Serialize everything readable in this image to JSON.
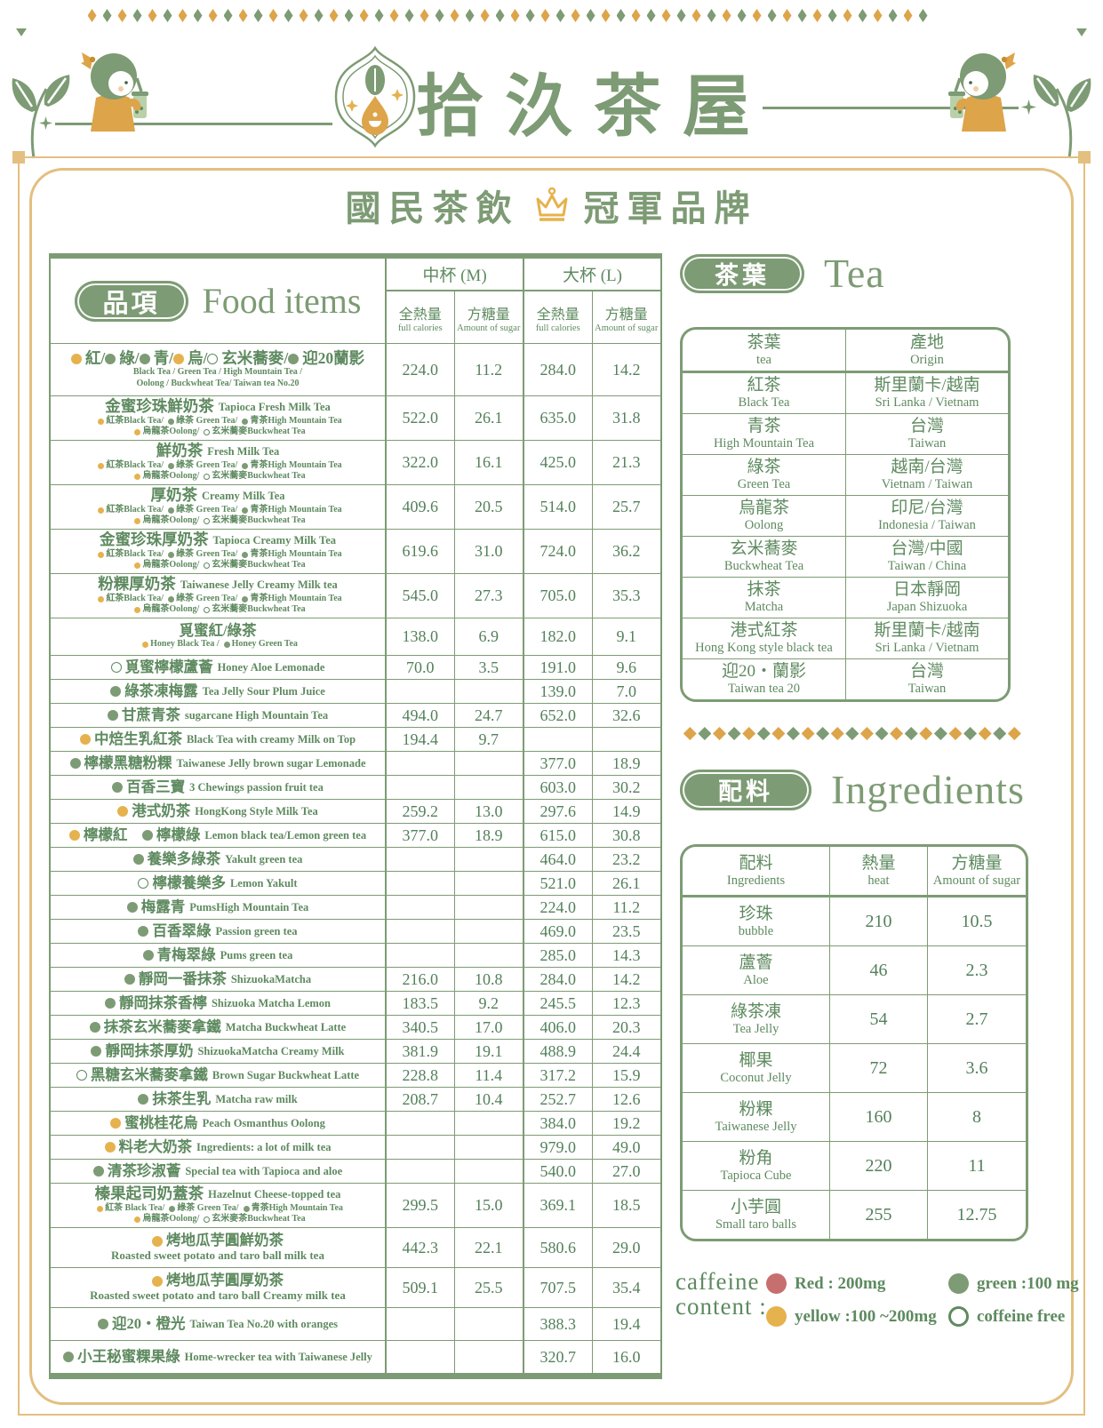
{
  "colors": {
    "green": "#7d9b74",
    "green_text": "#5e8a5f",
    "gold_frame": "#e3bf80",
    "orange": "#dda449",
    "dot_yellow": "#e5b24e",
    "dot_red": "#c76f6f"
  },
  "header": {
    "brand": "拾汣茶屋",
    "subtitle_left": "國民茶飲",
    "subtitle_right": "冠軍品牌"
  },
  "food_table": {
    "badge": "品項",
    "title_en": "Food items",
    "groups": [
      "中杯 (M)",
      "大杯 (L)"
    ],
    "subcols": {
      "cal_zh": "全熱量",
      "cal_en": "full calories",
      "sug_zh": "方糖量",
      "sug_en": "Amount of sugar"
    },
    "rows": [
      {
        "zh": [
          {
            "d": "y",
            "t": "紅"
          },
          {
            "t": "/"
          },
          {
            "d": "g",
            "t": "綠"
          },
          {
            "t": "/"
          },
          {
            "d": "g",
            "t": "青"
          },
          {
            "t": "/"
          },
          {
            "d": "y",
            "t": "烏"
          },
          {
            "t": "/"
          },
          {
            "d": "o",
            "t": "玄米蕎麥"
          },
          {
            "t": "/"
          },
          {
            "d": "g",
            "t": "迎20蘭影"
          }
        ],
        "sub": [
          [
            {
              "t": "Black Tea / Green Tea / High Mountain Tea /"
            }
          ],
          [
            {
              "t": "Oolong / Buckwheat Tea/ Taiwan tea No.20"
            }
          ]
        ],
        "m_cal": "224.0",
        "m_sug": "11.2",
        "l_cal": "284.0",
        "l_sug": "14.2"
      },
      {
        "zh": [
          {
            "t": "金蜜珍珠鮮奶茶"
          }
        ],
        "en": "Tapioca Fresh Milk Tea",
        "sub": [
          [
            {
              "d": "y",
              "t": "紅茶Black Tea/"
            },
            {
              "d": "g",
              "t": "綠茶 Green Tea/"
            },
            {
              "d": "g",
              "t": "青茶High Mountain Tea"
            }
          ],
          [
            {
              "d": "y",
              "t": "烏龍茶Oolong/"
            },
            {
              "d": "o",
              "t": "玄米蕎麥Buckwheat Tea"
            }
          ]
        ],
        "m_cal": "522.0",
        "m_sug": "26.1",
        "l_cal": "635.0",
        "l_sug": "31.8"
      },
      {
        "zh": [
          {
            "t": "鮮奶茶"
          }
        ],
        "en": "Fresh Milk Tea",
        "sub": [
          [
            {
              "d": "y",
              "t": "紅茶Black Tea/"
            },
            {
              "d": "g",
              "t": "綠茶 Green Tea/"
            },
            {
              "d": "g",
              "t": "青茶High Mountain Tea"
            }
          ],
          [
            {
              "d": "y",
              "t": "烏龍茶Oolong/"
            },
            {
              "d": "o",
              "t": "玄米蕎麥Buckwheat Tea"
            }
          ]
        ],
        "m_cal": "322.0",
        "m_sug": "16.1",
        "l_cal": "425.0",
        "l_sug": "21.3"
      },
      {
        "zh": [
          {
            "t": "厚奶茶"
          }
        ],
        "en": "Creamy Milk Tea",
        "sub": [
          [
            {
              "d": "y",
              "t": "紅茶Black Tea/"
            },
            {
              "d": "g",
              "t": "綠茶 Green Tea/"
            },
            {
              "d": "g",
              "t": "青茶High Mountain Tea"
            }
          ],
          [
            {
              "d": "y",
              "t": "烏龍茶Oolong/"
            },
            {
              "d": "o",
              "t": "玄米蕎麥Buckwheat Tea"
            }
          ]
        ],
        "m_cal": "409.6",
        "m_sug": "20.5",
        "l_cal": "514.0",
        "l_sug": "25.7"
      },
      {
        "zh": [
          {
            "t": "金蜜珍珠厚奶茶"
          }
        ],
        "en": "Tapioca Creamy Milk Tea",
        "sub": [
          [
            {
              "d": "y",
              "t": "紅茶Black Tea/"
            },
            {
              "d": "g",
              "t": "綠茶 Green Tea/"
            },
            {
              "d": "g",
              "t": "青茶High Mountain Tea"
            }
          ],
          [
            {
              "d": "y",
              "t": "烏龍茶Oolong/"
            },
            {
              "d": "o",
              "t": "玄米蕎麥Buckwheat Tea"
            }
          ]
        ],
        "m_cal": "619.6",
        "m_sug": "31.0",
        "l_cal": "724.0",
        "l_sug": "36.2"
      },
      {
        "zh": [
          {
            "t": "粉粿厚奶茶"
          }
        ],
        "en": "Taiwanese Jelly Creamy Milk tea",
        "sub": [
          [
            {
              "d": "y",
              "t": "紅茶Black Tea/"
            },
            {
              "d": "g",
              "t": "綠茶 Green Tea/"
            },
            {
              "d": "g",
              "t": "青茶High Mountain Tea"
            }
          ],
          [
            {
              "d": "y",
              "t": "烏龍茶Oolong/"
            },
            {
              "d": "o",
              "t": "玄米蕎麥Buckwheat Tea"
            }
          ]
        ],
        "m_cal": "545.0",
        "m_sug": "27.3",
        "l_cal": "705.0",
        "l_sug": "35.3"
      },
      {
        "zh": [
          {
            "t": "覓蜜紅/綠茶"
          }
        ],
        "sub": [
          [
            {
              "d": "y",
              "t": "Honey Black Tea  / "
            },
            {
              "d": "g",
              "t": "Honey Green Tea"
            }
          ]
        ],
        "m_cal": "138.0",
        "m_sug": "6.9",
        "l_cal": "182.0",
        "l_sug": "9.1"
      },
      {
        "zh": [
          {
            "d": "o",
            "t": "覓蜜檸檬蘆薈"
          }
        ],
        "en": "Honey Aloe Lemonade",
        "m_cal": "70.0",
        "m_sug": "3.5",
        "l_cal": "191.0",
        "l_sug": "9.6"
      },
      {
        "zh": [
          {
            "d": "g",
            "t": "綠茶凍梅露"
          }
        ],
        "en": "Tea Jelly Sour Plum Juice",
        "m_cal": "",
        "m_sug": "",
        "l_cal": "139.0",
        "l_sug": "7.0"
      },
      {
        "zh": [
          {
            "d": "g",
            "t": "甘蔗青茶"
          }
        ],
        "en": "sugarcane High Mountain Tea",
        "m_cal": "494.0",
        "m_sug": "24.7",
        "l_cal": "652.0",
        "l_sug": "32.6"
      },
      {
        "zh": [
          {
            "d": "y",
            "t": "中焙生乳紅茶"
          }
        ],
        "en": "Black Tea with creamy Milk on Top",
        "m_cal": "194.4",
        "m_sug": "9.7",
        "l_cal": "",
        "l_sug": ""
      },
      {
        "zh": [
          {
            "d": "g",
            "t": "檸檬黑糖粉粿"
          }
        ],
        "en": "Taiwanese Jelly brown sugar Lemonade",
        "m_cal": "",
        "m_sug": "",
        "l_cal": "377.0",
        "l_sug": "18.9"
      },
      {
        "zh": [
          {
            "d": "g",
            "t": "百香三寶"
          }
        ],
        "en": "3 Chewings passion fruit tea",
        "m_cal": "",
        "m_sug": "",
        "l_cal": "603.0",
        "l_sug": "30.2"
      },
      {
        "zh": [
          {
            "d": "y",
            "t": "港式奶茶"
          }
        ],
        "en": "HongKong Style Milk Tea",
        "m_cal": "259.2",
        "m_sug": "13.0",
        "l_cal": "297.6",
        "l_sug": "14.9"
      },
      {
        "zh": [
          {
            "d": "y",
            "t": "檸檬紅"
          },
          {
            "t": " "
          },
          {
            "d": "g",
            "t": "檸檬綠"
          }
        ],
        "en": "Lemon black tea/Lemon green tea",
        "m_cal": "377.0",
        "m_sug": "18.9",
        "l_cal": "615.0",
        "l_sug": "30.8"
      },
      {
        "zh": [
          {
            "d": "g",
            "t": "養樂多綠茶"
          }
        ],
        "en": "Yakult green tea",
        "m_cal": "",
        "m_sug": "",
        "l_cal": "464.0",
        "l_sug": "23.2"
      },
      {
        "zh": [
          {
            "d": "o",
            "t": "檸檬養樂多"
          }
        ],
        "en": "Lemon Yakult",
        "m_cal": "",
        "m_sug": "",
        "l_cal": "521.0",
        "l_sug": "26.1"
      },
      {
        "zh": [
          {
            "d": "g",
            "t": "梅露青"
          }
        ],
        "en": "PumsHigh Mountain Tea",
        "m_cal": "",
        "m_sug": "",
        "l_cal": "224.0",
        "l_sug": "11.2"
      },
      {
        "zh": [
          {
            "d": "g",
            "t": "百香翠綠"
          }
        ],
        "en": "Passion green tea",
        "m_cal": "",
        "m_sug": "",
        "l_cal": "469.0",
        "l_sug": "23.5"
      },
      {
        "zh": [
          {
            "d": "g",
            "t": "青梅翠綠"
          }
        ],
        "en": "Pums green tea",
        "m_cal": "",
        "m_sug": "",
        "l_cal": "285.0",
        "l_sug": "14.3"
      },
      {
        "zh": [
          {
            "d": "g",
            "t": "靜岡一番抹茶"
          }
        ],
        "en": "ShizuokaMatcha",
        "m_cal": "216.0",
        "m_sug": "10.8",
        "l_cal": "284.0",
        "l_sug": "14.2"
      },
      {
        "zh": [
          {
            "d": "g",
            "t": "靜岡抹茶香檸"
          }
        ],
        "en": "Shizuoka Matcha Lemon",
        "m_cal": "183.5",
        "m_sug": "9.2",
        "l_cal": "245.5",
        "l_sug": "12.3"
      },
      {
        "zh": [
          {
            "d": "g",
            "t": "抹茶玄米蕎麥拿鐵"
          }
        ],
        "en": "Matcha Buckwheat Latte",
        "m_cal": "340.5",
        "m_sug": "17.0",
        "l_cal": "406.0",
        "l_sug": "20.3"
      },
      {
        "zh": [
          {
            "d": "g",
            "t": "靜岡抹茶厚奶"
          }
        ],
        "en": "ShizuokaMatcha Creamy Milk",
        "m_cal": "381.9",
        "m_sug": "19.1",
        "l_cal": "488.9",
        "l_sug": "24.4"
      },
      {
        "zh": [
          {
            "d": "o",
            "t": "黑糖玄米蕎麥拿鐵"
          }
        ],
        "en": "Brown Sugar Buckwheat Latte",
        "m_cal": "228.8",
        "m_sug": "11.4",
        "l_cal": "317.2",
        "l_sug": "15.9"
      },
      {
        "zh": [
          {
            "d": "g",
            "t": "抹茶生乳"
          }
        ],
        "en": "Matcha raw milk",
        "m_cal": "208.7",
        "m_sug": "10.4",
        "l_cal": "252.7",
        "l_sug": "12.6"
      },
      {
        "zh": [
          {
            "d": "y",
            "t": "蜜桃桂花烏"
          }
        ],
        "en": "Peach Osmanthus Oolong",
        "m_cal": "",
        "m_sug": "",
        "l_cal": "384.0",
        "l_sug": "19.2"
      },
      {
        "zh": [
          {
            "d": "y",
            "t": "料老大奶茶"
          }
        ],
        "en": "Ingredients: a lot of milk tea",
        "m_cal": "",
        "m_sug": "",
        "l_cal": "979.0",
        "l_sug": "49.0"
      },
      {
        "zh": [
          {
            "d": "g",
            "t": "清茶珍淑薈"
          }
        ],
        "en": "Special tea with Tapioca and aloe",
        "m_cal": "",
        "m_sug": "",
        "l_cal": "540.0",
        "l_sug": "27.0"
      },
      {
        "zh": [
          {
            "t": "榛果起司奶蓋茶"
          }
        ],
        "en": "Hazelnut Cheese-topped tea",
        "sub": [
          [
            {
              "d": "y",
              "t": "紅茶 Black Tea/"
            },
            {
              "d": "g",
              "t": "綠茶 Green Tea/"
            },
            {
              "d": "g",
              "t": "青茶High Mountain Tea"
            }
          ],
          [
            {
              "d": "y",
              "t": "烏龍茶Oolong/"
            },
            {
              "d": "o",
              "t": "玄米麥茶Buckwheat Tea"
            }
          ]
        ],
        "m_cal": "299.5",
        "m_sug": "15.0",
        "l_cal": "369.1",
        "l_sug": "18.5"
      },
      {
        "zh": [
          {
            "d": "y",
            "t": "烤地瓜芋圓鮮奶茶"
          }
        ],
        "en2": "Roasted sweet potato and taro ball milk tea",
        "m_cal": "442.3",
        "m_sug": "22.1",
        "l_cal": "580.6",
        "l_sug": "29.0"
      },
      {
        "zh": [
          {
            "d": "y",
            "t": "烤地瓜芋圓厚奶茶"
          }
        ],
        "en2": "Roasted sweet potato and taro ball Creamy milk tea",
        "m_cal": "509.1",
        "m_sug": "25.5",
        "l_cal": "707.5",
        "l_sug": "35.4"
      },
      {
        "zh": [
          {
            "d": "g",
            "t": "迎20・橙光"
          }
        ],
        "en": "Taiwan Tea No.20 with oranges",
        "m_cal": "",
        "m_sug": "",
        "l_cal": "388.3",
        "l_sug": "19.4"
      },
      {
        "zh": [
          {
            "d": "g",
            "t": "小王秘蜜粿果綠"
          }
        ],
        "en": "Home-wrecker tea with Taiwanese Jelly",
        "m_cal": "",
        "m_sug": "",
        "l_cal": "320.7",
        "l_sug": "16.0"
      }
    ]
  },
  "tea": {
    "badge": "茶葉",
    "title": "Tea",
    "col1_zh": "茶葉",
    "col1_en": "tea",
    "col2_zh": "產地",
    "col2_en": "Origin",
    "rows": [
      {
        "zh": "紅茶",
        "en": "Black Tea",
        "ozh": "斯里蘭卡/越南",
        "oen": "Sri Lanka / Vietnam"
      },
      {
        "zh": "青茶",
        "en": "High Mountain Tea",
        "ozh": "台灣",
        "oen": "Taiwan"
      },
      {
        "zh": "綠茶",
        "en": "Green Tea",
        "ozh": "越南/台灣",
        "oen": "Vietnam / Taiwan"
      },
      {
        "zh": "烏龍茶",
        "en": "Oolong",
        "ozh": "印尼/台灣",
        "oen": "Indonesia / Taiwan"
      },
      {
        "zh": "玄米蕎麥",
        "en": "Buckwheat Tea",
        "ozh": "台灣/中國",
        "oen": "Taiwan / China"
      },
      {
        "zh": "抹茶",
        "en": "Matcha",
        "ozh": "日本靜岡",
        "oen": "Japan Shizuoka"
      },
      {
        "zh": "港式紅茶",
        "en": "Hong Kong style black tea",
        "ozh": "斯里蘭卡/越南",
        "oen": "Sri Lanka / Vietnam"
      },
      {
        "zh": "迎20・蘭影",
        "en": "Taiwan tea 20",
        "ozh": "台灣",
        "oen": "Taiwan"
      }
    ]
  },
  "ingredients": {
    "badge": "配料",
    "title": "Ingredients",
    "col1_zh": "配料",
    "col1_en": "Ingredients",
    "col2_zh": "熱量",
    "col2_en": "heat",
    "col3_zh": "方糖量",
    "col3_en": "Amount of sugar",
    "rows": [
      {
        "zh": "珍珠",
        "en": "bubble",
        "heat": "210",
        "sugar": "10.5"
      },
      {
        "zh": "蘆薈",
        "en": "Aloe",
        "heat": "46",
        "sugar": "2.3"
      },
      {
        "zh": "綠茶凍",
        "en": "Tea Jelly",
        "heat": "54",
        "sugar": "2.7"
      },
      {
        "zh": "椰果",
        "en": "Coconut Jelly",
        "heat": "72",
        "sugar": "3.6"
      },
      {
        "zh": "粉粿",
        "en": "Taiwanese Jelly",
        "heat": "160",
        "sugar": "8"
      },
      {
        "zh": "粉角",
        "en": "Tapioca Cube",
        "heat": "220",
        "sugar": "11"
      },
      {
        "zh": "小芋圓",
        "en": "Small taro balls",
        "heat": "255",
        "sugar": "12.75"
      }
    ]
  },
  "caffeine": {
    "label_line1": "caffeine",
    "label_line2": "content :",
    "items": [
      {
        "dot": "red",
        "label": "Red : 200mg"
      },
      {
        "dot": "yellow",
        "label": "yellow :100 ~200mg"
      },
      {
        "dot": "green",
        "label": "green :100 mg"
      },
      {
        "dot": "free",
        "label": "coffeine free"
      }
    ]
  }
}
